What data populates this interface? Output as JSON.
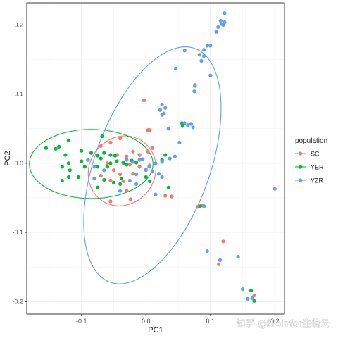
{
  "chart_data": {
    "type": "scatter",
    "xlabel": "PC1",
    "ylabel": "PC2",
    "xlim": [
      -0.185,
      0.215
    ],
    "ylim": [
      -0.218,
      0.232
    ],
    "x_ticks": [
      -0.1,
      0.0,
      0.1,
      0.2
    ],
    "x_tick_labels": [
      "-0.1",
      "0.0",
      "0.1",
      "0.2"
    ],
    "y_ticks": [
      -0.2,
      -0.1,
      0.0,
      0.1,
      0.2
    ],
    "y_tick_labels": [
      "-0.2",
      "-0.1",
      "0.0",
      "0.1",
      "0.2"
    ],
    "grid": true,
    "legend": {
      "title": "population",
      "position": "right"
    },
    "series": [
      {
        "name": "SC",
        "color": "#F8766D",
        "ellipse": {
          "cx": -0.037,
          "cy": -0.011,
          "rx": 0.051,
          "ry": 0.052,
          "angle_deg": 35
        },
        "points": [
          [
            -0.003,
            0.091
          ],
          [
            0.003,
            0.048
          ],
          [
            0.006,
            0.048
          ],
          [
            -0.04,
            0.036
          ],
          [
            -0.055,
            0.03
          ],
          [
            -0.07,
            0.025
          ],
          [
            -0.02,
            0.017
          ],
          [
            -0.01,
            0.012
          ],
          [
            0.003,
            0.017
          ],
          [
            -0.03,
            0.01
          ],
          [
            -0.045,
            0.012
          ],
          [
            0.01,
            0.022
          ],
          [
            -0.06,
            0.0
          ],
          [
            -0.035,
            0.0
          ],
          [
            -0.025,
            -0.002
          ],
          [
            -0.01,
            -0.005
          ],
          [
            0.0,
            -0.009
          ],
          [
            0.006,
            -0.003
          ],
          [
            -0.05,
            -0.01
          ],
          [
            -0.04,
            -0.016
          ],
          [
            -0.02,
            -0.015
          ],
          [
            -0.07,
            -0.018
          ],
          [
            -0.055,
            -0.025
          ],
          [
            -0.035,
            -0.026
          ],
          [
            -0.03,
            -0.04
          ],
          [
            -0.024,
            -0.052
          ],
          [
            -0.055,
            -0.055
          ],
          [
            0.04,
            -0.048
          ],
          [
            0.03,
            -0.047
          ],
          [
            0.08,
            -0.063
          ],
          [
            0.088,
            -0.061
          ],
          [
            0.12,
            -0.113
          ],
          [
            0.113,
            -0.146
          ],
          [
            0.168,
            -0.191
          ]
        ]
      },
      {
        "name": "YER",
        "color": "#00BA38",
        "ellipse": {
          "cx": -0.085,
          "cy": -0.001,
          "rx": 0.096,
          "ry": 0.05,
          "angle_deg": 0
        },
        "points": [
          [
            -0.068,
            0.039
          ],
          [
            -0.12,
            0.033
          ],
          [
            -0.135,
            0.024
          ],
          [
            -0.155,
            0.022
          ],
          [
            -0.14,
            0.021
          ],
          [
            -0.1,
            0.018
          ],
          [
            -0.085,
            0.015
          ],
          [
            -0.065,
            0.015
          ],
          [
            -0.055,
            0.012
          ],
          [
            -0.048,
            0.011
          ],
          [
            -0.075,
            0.011
          ],
          [
            -0.125,
            0.012
          ],
          [
            -0.07,
            0.007
          ],
          [
            -0.09,
            0.005
          ],
          [
            -0.1,
            0.003
          ],
          [
            -0.12,
            0.0
          ],
          [
            -0.13,
            -0.005
          ],
          [
            -0.118,
            -0.01
          ],
          [
            -0.095,
            -0.005
          ],
          [
            -0.075,
            -0.005
          ],
          [
            -0.06,
            -0.005
          ],
          [
            -0.055,
            0.0
          ],
          [
            -0.045,
            0.003
          ],
          [
            -0.035,
            0.001
          ],
          [
            -0.03,
            -0.002
          ],
          [
            -0.022,
            0.004
          ],
          [
            -0.015,
            0.001
          ],
          [
            -0.12,
            -0.02
          ],
          [
            -0.105,
            -0.02
          ],
          [
            -0.065,
            -0.024
          ],
          [
            -0.05,
            -0.028
          ],
          [
            -0.04,
            -0.03
          ],
          [
            -0.075,
            -0.035
          ],
          [
            -0.13,
            -0.025
          ],
          [
            -0.038,
            -0.022
          ],
          [
            0.0,
            -0.02
          ],
          [
            0.006,
            -0.026
          ],
          [
            0.025,
            0.005
          ],
          [
            0.03,
            0.012
          ],
          [
            0.056,
            0.058
          ],
          [
            0.057,
            0.054
          ],
          [
            0.035,
            -0.035
          ],
          [
            0.084,
            -0.062
          ],
          [
            0.163,
            -0.184
          ],
          [
            0.168,
            -0.199
          ]
        ]
      },
      {
        "name": "YZR",
        "color": "#619CFF",
        "ellipse": {
          "cx": 0.01,
          "cy": -0.003,
          "rx": 0.193,
          "ry": 0.083,
          "angle_deg": -70
        },
        "points": [
          [
            0.122,
            0.217
          ],
          [
            0.116,
            0.206
          ],
          [
            0.12,
            0.2
          ],
          [
            0.112,
            0.197
          ],
          [
            0.122,
            0.204
          ],
          [
            0.118,
            0.201
          ],
          [
            0.109,
            0.19
          ],
          [
            0.095,
            0.17
          ],
          [
            0.1,
            0.17
          ],
          [
            0.09,
            0.164
          ],
          [
            0.06,
            0.163
          ],
          [
            0.09,
            0.155
          ],
          [
            0.083,
            0.157
          ],
          [
            0.086,
            0.148
          ],
          [
            0.046,
            0.137
          ],
          [
            0.1,
            0.127
          ],
          [
            0.076,
            0.112
          ],
          [
            0.075,
            0.104
          ],
          [
            0.076,
            0.113
          ],
          [
            0.025,
            0.085
          ],
          [
            0.022,
            0.077
          ],
          [
            0.03,
            0.08
          ],
          [
            0.025,
            0.07
          ],
          [
            0.028,
            0.072
          ],
          [
            0.035,
            0.05
          ],
          [
            0.065,
            0.055
          ],
          [
            0.07,
            0.057
          ],
          [
            0.073,
            0.052
          ],
          [
            0.06,
            0.058
          ],
          [
            0.052,
            0.03
          ],
          [
            0.045,
            0.01
          ],
          [
            0.037,
            0.007
          ],
          [
            0.025,
            0.002
          ],
          [
            0.015,
            0.0
          ],
          [
            -0.005,
            0.006
          ],
          [
            -0.02,
            0.002
          ],
          [
            -0.03,
            0.005
          ],
          [
            -0.01,
            0.005
          ],
          [
            0.0,
            -0.01
          ],
          [
            -0.015,
            -0.016
          ],
          [
            0.01,
            -0.012
          ],
          [
            0.02,
            -0.015
          ],
          [
            -0.025,
            -0.025
          ],
          [
            -0.015,
            -0.03
          ],
          [
            -0.04,
            -0.04
          ],
          [
            -0.09,
            0.005
          ],
          [
            -0.08,
            -0.005
          ],
          [
            -0.065,
            -0.01
          ],
          [
            -0.08,
            -0.022
          ],
          [
            0.005,
            -0.005
          ],
          [
            0.025,
            -0.02
          ],
          [
            0.015,
            -0.045
          ],
          [
            0.09,
            -0.062
          ],
          [
            0.095,
            -0.127
          ],
          [
            0.115,
            -0.14
          ],
          [
            0.143,
            -0.135
          ],
          [
            0.15,
            -0.182
          ],
          [
            0.158,
            -0.196
          ],
          [
            0.165,
            -0.195
          ],
          [
            0.2,
            -0.037
          ]
        ]
      }
    ]
  },
  "watermark": "知乎 @Bioinfor生信云"
}
